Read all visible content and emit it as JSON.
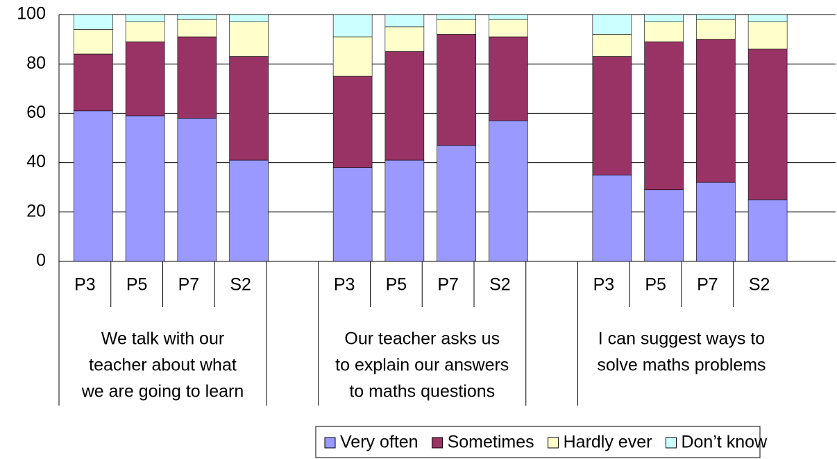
{
  "chart_data": {
    "type": "stacked_bar",
    "categories": [
      "P3",
      "P5",
      "P7",
      "S2",
      null,
      "P3",
      "P5",
      "P7",
      "S2",
      null,
      "P3",
      "P5",
      "P7",
      "S2"
    ],
    "group_labels": [
      [
        "We talk with our",
        "teacher about what",
        "we are going to learn"
      ],
      [
        "Our teacher asks us",
        "to explain our answers",
        "to maths questions"
      ],
      [
        "I can suggest ways to",
        "solve maths problems"
      ]
    ],
    "series": [
      {
        "name": "Very often",
        "color": "#9999ff",
        "values": [
          61,
          59,
          58,
          41,
          null,
          38,
          41,
          47,
          57,
          null,
          35,
          29,
          32,
          25
        ]
      },
      {
        "name": "Sometimes",
        "color": "#993366",
        "values": [
          23,
          30,
          33,
          42,
          null,
          37,
          44,
          45,
          34,
          null,
          48,
          60,
          58,
          61
        ]
      },
      {
        "name": "Hardly ever",
        "color": "#ffffcc",
        "values": [
          10,
          8,
          7,
          14,
          null,
          16,
          10,
          6,
          7,
          null,
          9,
          8,
          8,
          11
        ]
      },
      {
        "name": "Don’t know",
        "color": "#ccffff",
        "values": [
          6,
          3,
          2,
          3,
          null,
          9,
          5,
          2,
          2,
          null,
          8,
          3,
          2,
          3
        ]
      }
    ],
    "ylim": [
      0,
      100
    ],
    "yticks": [
      0,
      20,
      40,
      60,
      80,
      100
    ],
    "grid": true
  }
}
